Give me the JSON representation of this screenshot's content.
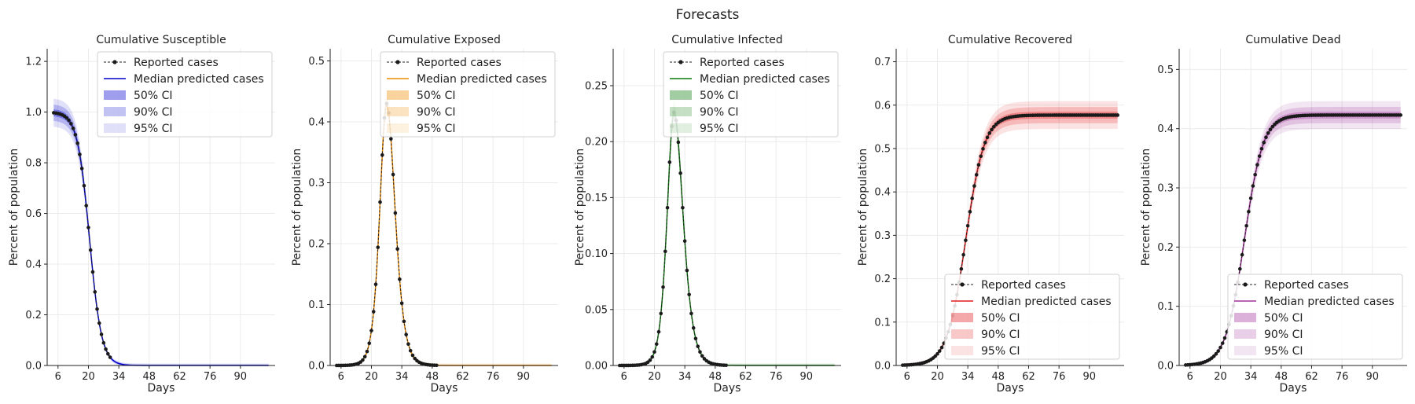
{
  "figure": {
    "title": "Forecasts"
  },
  "chart_data": [
    {
      "type": "line",
      "title": "Cumulative Susceptible",
      "xlabel": "Days",
      "ylabel": "Percent of population",
      "xlim": [
        1,
        106
      ],
      "ylim": [
        0,
        1.25
      ],
      "xticks": [
        6,
        20,
        34,
        48,
        62,
        76,
        90
      ],
      "yticks": [
        0.0,
        0.2,
        0.4,
        0.6,
        0.8,
        1.0,
        1.2
      ],
      "ytick_labels": [
        "0.0",
        "0.2",
        "0.4",
        "0.6",
        "0.8",
        "1.0",
        "1.2"
      ],
      "grid": true,
      "legend_position": "top-center",
      "color": "#0000cc",
      "shape": "decline",
      "params": {
        "top": 1.0,
        "bottom": 0.0,
        "center": 20.5,
        "width": 2.8
      },
      "reported_points_until_day": 30,
      "legend": [
        "Reported cases",
        "Median predicted cases",
        "50% CI",
        "90% CI",
        "95% CI"
      ]
    },
    {
      "type": "line",
      "title": "Cumulative Exposed",
      "xlabel": "Days",
      "ylabel": "Percent of population",
      "xlim": [
        1,
        106
      ],
      "ylim": [
        0,
        0.52
      ],
      "xticks": [
        6,
        20,
        34,
        48,
        62,
        76,
        90
      ],
      "yticks": [
        0.0,
        0.1,
        0.2,
        0.3,
        0.4,
        0.5
      ],
      "ytick_labels": [
        "0.0",
        "0.1",
        "0.2",
        "0.3",
        "0.4",
        "0.5"
      ],
      "grid": true,
      "legend_position": "top-center",
      "color": "#f08c00",
      "shape": "peak",
      "params": {
        "peak": 0.43,
        "center": 27,
        "rise_width": 4.2,
        "decay_width": 5.2
      },
      "reported_points_until_day": 50,
      "legend": [
        "Reported cases",
        "Median predicted cases",
        "50% CI",
        "90% CI",
        "95% CI"
      ]
    },
    {
      "type": "line",
      "title": "Cumulative Infected",
      "xlabel": "Days",
      "ylabel": "Percent of population",
      "xlim": [
        1,
        106
      ],
      "ylim": [
        0,
        0.283
      ],
      "xticks": [
        6,
        20,
        34,
        48,
        62,
        76,
        90
      ],
      "yticks": [
        0.0,
        0.05,
        0.1,
        0.15,
        0.2,
        0.25
      ],
      "ytick_labels": [
        "0.00",
        "0.05",
        "0.10",
        "0.15",
        "0.20",
        "0.25"
      ],
      "grid": true,
      "legend_position": "top-center",
      "color": "#0a7a0a",
      "shape": "peak",
      "params": {
        "peak": 0.226,
        "center": 29,
        "rise_width": 4.2,
        "decay_width": 5.6
      },
      "reported_points_until_day": 53,
      "legend": [
        "Reported cases",
        "Median predicted cases",
        "50% CI",
        "90% CI",
        "95% CI"
      ]
    },
    {
      "type": "line",
      "title": "Cumulative Recovered",
      "xlabel": "Days",
      "ylabel": "Percent of population",
      "xlim": [
        1,
        106
      ],
      "ylim": [
        0,
        0.73
      ],
      "xticks": [
        6,
        20,
        34,
        48,
        62,
        76,
        90
      ],
      "yticks": [
        0.0,
        0.1,
        0.2,
        0.3,
        0.4,
        0.5,
        0.6,
        0.7
      ],
      "ytick_labels": [
        "0.0",
        "0.1",
        "0.2",
        "0.3",
        "0.4",
        "0.5",
        "0.6",
        "0.7"
      ],
      "grid": true,
      "legend_position": "bottom-right",
      "color": "#e31a1c",
      "shape": "rise",
      "params": {
        "top": 0.577,
        "bottom": 0.0,
        "center": 33,
        "width": 4.3
      },
      "reported_points_until_day": 106,
      "legend": [
        "Reported cases",
        "Median predicted cases",
        "50% CI",
        "90% CI",
        "95% CI"
      ]
    },
    {
      "type": "line",
      "title": "Cumulative Dead",
      "xlabel": "Days",
      "ylabel": "Percent of population",
      "xlim": [
        1,
        106
      ],
      "ylim": [
        0,
        0.535
      ],
      "xticks": [
        6,
        20,
        34,
        48,
        62,
        76,
        90
      ],
      "yticks": [
        0.0,
        0.1,
        0.2,
        0.3,
        0.4,
        0.5
      ],
      "ytick_labels": [
        "0.0",
        "0.1",
        "0.2",
        "0.3",
        "0.4",
        "0.5"
      ],
      "grid": true,
      "legend_position": "bottom-right",
      "color": "#a0329a",
      "shape": "rise",
      "params": {
        "top": 0.423,
        "bottom": 0.0,
        "center": 31,
        "width": 4.3
      },
      "reported_points_until_day": 106,
      "legend": [
        "Reported cases",
        "Median predicted cases",
        "50% CI",
        "90% CI",
        "95% CI"
      ]
    }
  ]
}
